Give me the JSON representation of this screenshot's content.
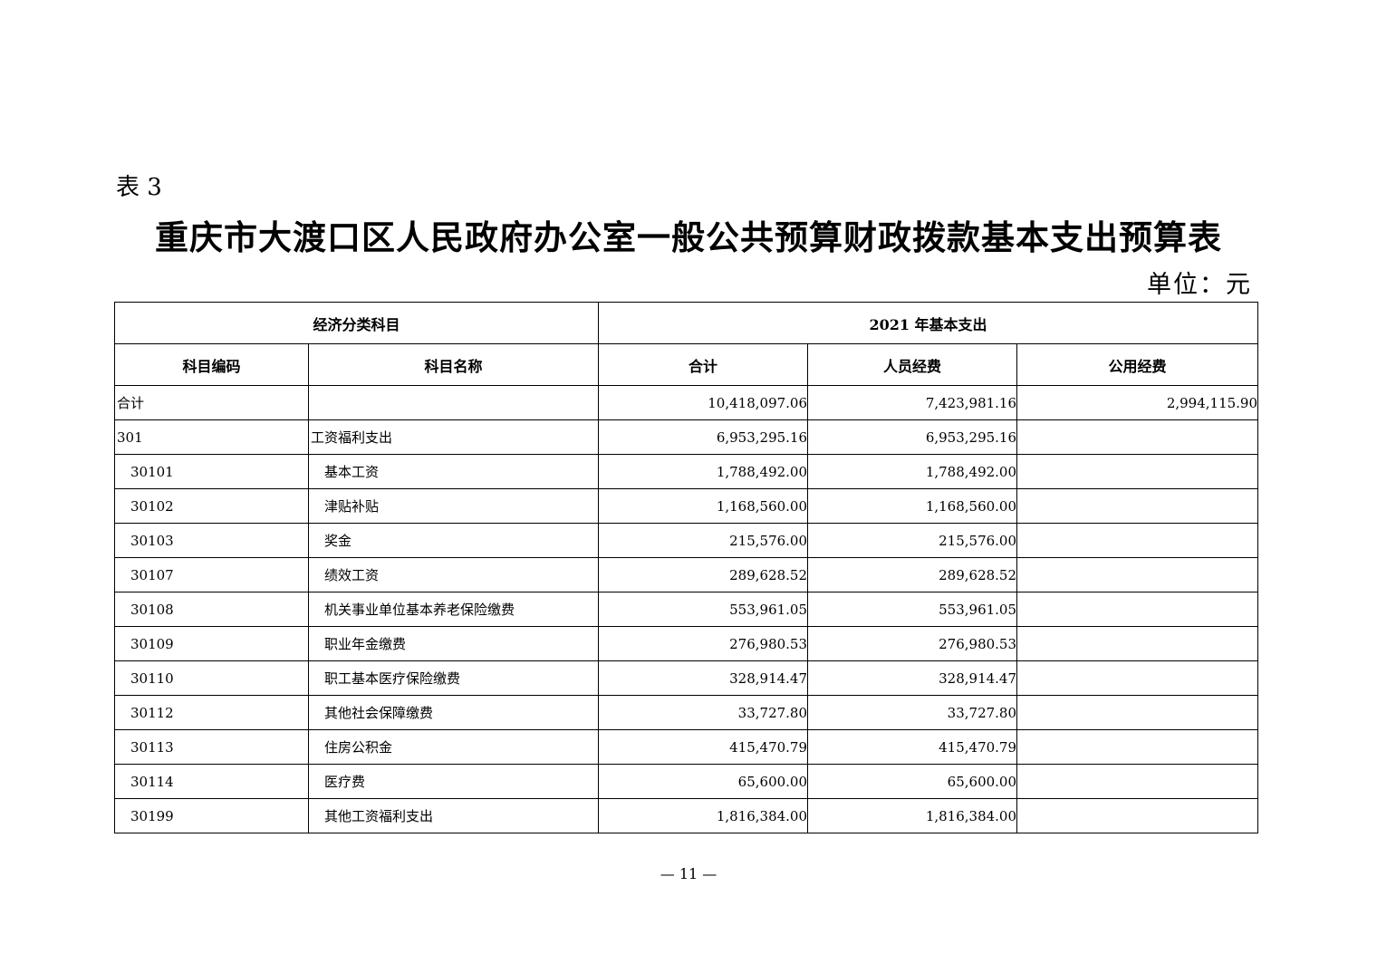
{
  "document": {
    "label": "表 3",
    "title": "重庆市大渡口区人民政府办公室一般公共预算财政拨款基本支出预算表",
    "unit": "单位：元",
    "page_number": "— 11 —"
  },
  "table": {
    "group_headers": [
      "经济分类科目",
      "2021 年基本支出"
    ],
    "headers": [
      "科目编码",
      "科目名称",
      "合计",
      "人员经费",
      "公用经费"
    ],
    "rows": [
      {
        "code": "合计",
        "name": "",
        "total": "10,418,097.06",
        "personnel": "7,423,981.16",
        "public": "2,994,115.90",
        "level": 0
      },
      {
        "code": "301",
        "name": "工资福利支出",
        "total": "6,953,295.16",
        "personnel": "6,953,295.16",
        "public": "",
        "level": 0
      },
      {
        "code": "30101",
        "name": "基本工资",
        "total": "1,788,492.00",
        "personnel": "1,788,492.00",
        "public": "",
        "level": 1
      },
      {
        "code": "30102",
        "name": "津贴补贴",
        "total": "1,168,560.00",
        "personnel": "1,168,560.00",
        "public": "",
        "level": 1
      },
      {
        "code": "30103",
        "name": "奖金",
        "total": "215,576.00",
        "personnel": "215,576.00",
        "public": "",
        "level": 1
      },
      {
        "code": "30107",
        "name": "绩效工资",
        "total": "289,628.52",
        "personnel": "289,628.52",
        "public": "",
        "level": 1
      },
      {
        "code": "30108",
        "name": "机关事业单位基本养老保险缴费",
        "total": "553,961.05",
        "personnel": "553,961.05",
        "public": "",
        "level": 1
      },
      {
        "code": "30109",
        "name": "职业年金缴费",
        "total": "276,980.53",
        "personnel": "276,980.53",
        "public": "",
        "level": 1
      },
      {
        "code": "30110",
        "name": "职工基本医疗保险缴费",
        "total": "328,914.47",
        "personnel": "328,914.47",
        "public": "",
        "level": 1
      },
      {
        "code": "30112",
        "name": "其他社会保障缴费",
        "total": "33,727.80",
        "personnel": "33,727.80",
        "public": "",
        "level": 1
      },
      {
        "code": "30113",
        "name": "住房公积金",
        "total": "415,470.79",
        "personnel": "415,470.79",
        "public": "",
        "level": 1
      },
      {
        "code": "30114",
        "name": "医疗费",
        "total": "65,600.00",
        "personnel": "65,600.00",
        "public": "",
        "level": 1
      },
      {
        "code": "30199",
        "name": "其他工资福利支出",
        "total": "1,816,384.00",
        "personnel": "1,816,384.00",
        "public": "",
        "level": 1
      }
    ]
  }
}
